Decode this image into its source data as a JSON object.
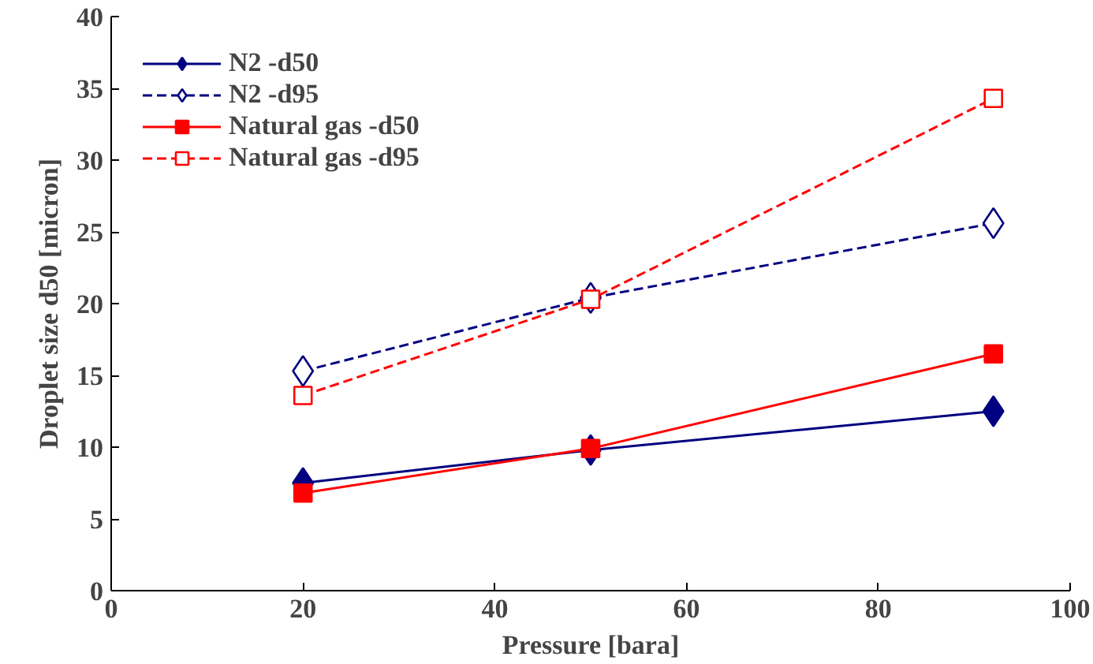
{
  "chart_data": {
    "type": "line",
    "xlabel": "Pressure [bara]",
    "ylabel": "Droplet size d50 [micron]",
    "x": [
      20,
      50,
      92
    ],
    "series": [
      {
        "name": "N2 -d50",
        "color": "#000080",
        "values": [
          7.5,
          9.8,
          12.5
        ],
        "marker": "diamond",
        "line_style": "solid"
      },
      {
        "name": "N2 -d95",
        "color": "#000080",
        "values": [
          15.3,
          20.4,
          25.6
        ],
        "marker": "diamond",
        "line_style": "dashed"
      },
      {
        "name": "Natural gas -d50",
        "color": "#ff0000",
        "values": [
          6.8,
          9.9,
          16.5
        ],
        "marker": "square",
        "line_style": "solid"
      },
      {
        "name": "Natural gas -d95",
        "color": "#ff0000",
        "values": [
          13.6,
          20.3,
          34.3
        ],
        "marker": "square",
        "line_style": "dashed"
      }
    ],
    "xlim": [
      0,
      100
    ],
    "xticks": [
      0,
      20,
      40,
      60,
      80,
      100
    ],
    "ylim": [
      0,
      40
    ],
    "yticks": [
      0,
      5,
      10,
      15,
      20,
      25,
      30,
      35,
      40
    ],
    "grid": false,
    "legend": "top left"
  }
}
